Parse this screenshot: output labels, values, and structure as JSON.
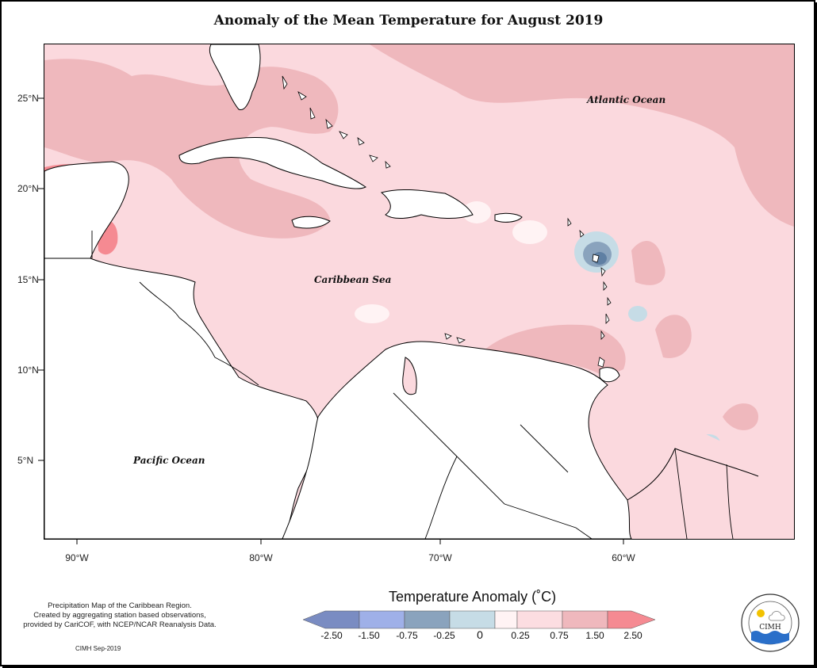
{
  "title": "Anomaly of the Mean Temperature for August 2019",
  "map": {
    "labels": {
      "atlantic": "Atlantic Ocean",
      "caribbean": "Caribbean Sea",
      "pacific": "Pacific Ocean"
    },
    "lat_ticks": [
      "25°N",
      "20°N",
      "15°N",
      "10°N",
      "5°N"
    ],
    "lon_ticks": [
      "90°W",
      "80°W",
      "70°W",
      "60°W"
    ],
    "colors": {
      "ocean_base": "#fbd9de",
      "warm_light": "#fde8ea",
      "warm_mid": "#efb8bd",
      "warm_high": "#f58a92",
      "cool_light": "#cfe0ea",
      "cool_mid": "#8ca7bd",
      "cool_dark": "#5f7fa3",
      "land": "#ffffff"
    }
  },
  "legend": {
    "title": "Temperature Anomaly (˚C)",
    "labels": [
      "-2.50",
      "-1.50",
      "-0.75",
      "-0.25",
      "0",
      "0.25",
      "0.75",
      "1.50",
      "2.50"
    ],
    "bins": [
      {
        "color": "#7a8cc2"
      },
      {
        "color": "#9fb0e8"
      },
      {
        "color": "#8aa3bd"
      },
      {
        "color": "#c6dce6"
      },
      {
        "color": "#fff3f4"
      },
      {
        "color": "#fcdde1"
      },
      {
        "color": "#efb8bd"
      },
      {
        "color": "#f58a92"
      }
    ]
  },
  "credits": {
    "line1": "Precipitation Map of the Caribbean Region.",
    "line2": "Created by aggregating station based observations,",
    "line3": "provided by CariCOF, with NCEP/NCAR Reanalysis Data.",
    "date": "CIMH Sep-2019"
  },
  "logo": {
    "text": "CIMH"
  }
}
